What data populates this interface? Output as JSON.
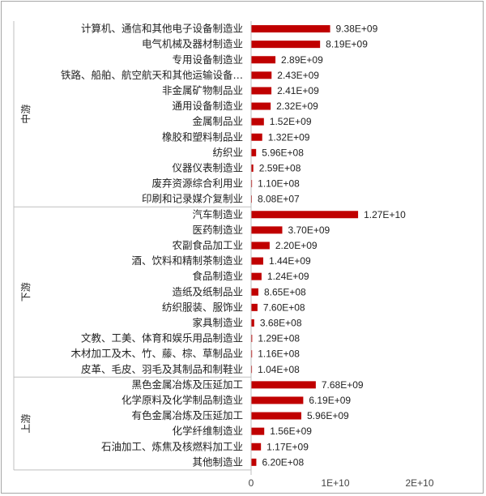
{
  "chart_data": {
    "type": "bar",
    "orientation": "horizontal",
    "title": "",
    "xlabel": "",
    "ylabel": "",
    "xlim": [
      0,
      25000000000
    ],
    "x_ticks": [
      0,
      10000000000,
      20000000000
    ],
    "x_tick_labels": [
      "0",
      "1E+10",
      "2E+10"
    ],
    "grid": false,
    "bar_color": "#c00000",
    "groups": [
      {
        "name": "中游",
        "categories": [
          "计算机、通信和其他电子设备制造业",
          "电气机械及器材制造业",
          "专用设备制造业",
          "铁路、船舶、航空航天和其他运输设备…",
          "非金属矿物制品业",
          "通用设备制造业",
          "金属制品业",
          "橡胶和塑料制品业",
          "纺织业",
          "仪器仪表制造业",
          "废弃资源综合利用业",
          "印刷和记录媒介复制业"
        ],
        "values": [
          9380000000,
          8190000000,
          2890000000,
          2430000000,
          2410000000,
          2320000000,
          1520000000,
          1320000000,
          596000000,
          259000000,
          110000000,
          80800000
        ],
        "value_labels": [
          "9.38E+09",
          "8.19E+09",
          "2.89E+09",
          "2.43E+09",
          "2.41E+09",
          "2.32E+09",
          "1.52E+09",
          "1.32E+09",
          "5.96E+08",
          "2.59E+08",
          "1.10E+08",
          "8.08E+07"
        ]
      },
      {
        "name": "下游",
        "categories": [
          "汽车制造业",
          "医药制造业",
          "农副食品加工业",
          "酒、饮料和精制茶制造业",
          "食品制造业",
          "造纸及纸制品业",
          "纺织服装、服饰业",
          "家具制造业",
          "文教、工美、体育和娱乐用品制造业",
          "木材加工及木、竹、藤、棕、草制品业",
          "皮革、毛皮、羽毛及其制品和制鞋业"
        ],
        "values": [
          12700000000,
          3700000000,
          2200000000,
          1440000000,
          1240000000,
          865000000,
          760000000,
          368000000,
          129000000,
          116000000,
          104000000
        ],
        "value_labels": [
          "1.27E+10",
          "3.70E+09",
          "2.20E+09",
          "1.44E+09",
          "1.24E+09",
          "8.65E+08",
          "7.60E+08",
          "3.68E+08",
          "1.29E+08",
          "1.16E+08",
          "1.04E+08"
        ]
      },
      {
        "name": "上游",
        "categories": [
          "黑色金属冶炼及压延加工",
          "化学原料及化学制品制造业",
          "有色金属冶炼及压延加工",
          "化学纤维制造业",
          "石油加工、炼焦及核燃料加工业",
          "其他制造业"
        ],
        "values": [
          7680000000,
          6190000000,
          5960000000,
          1560000000,
          1170000000,
          620000000
        ],
        "value_labels": [
          "7.68E+09",
          "6.19E+09",
          "5.96E+09",
          "1.56E+09",
          "1.17E+09",
          "6.20E+08"
        ]
      }
    ]
  }
}
